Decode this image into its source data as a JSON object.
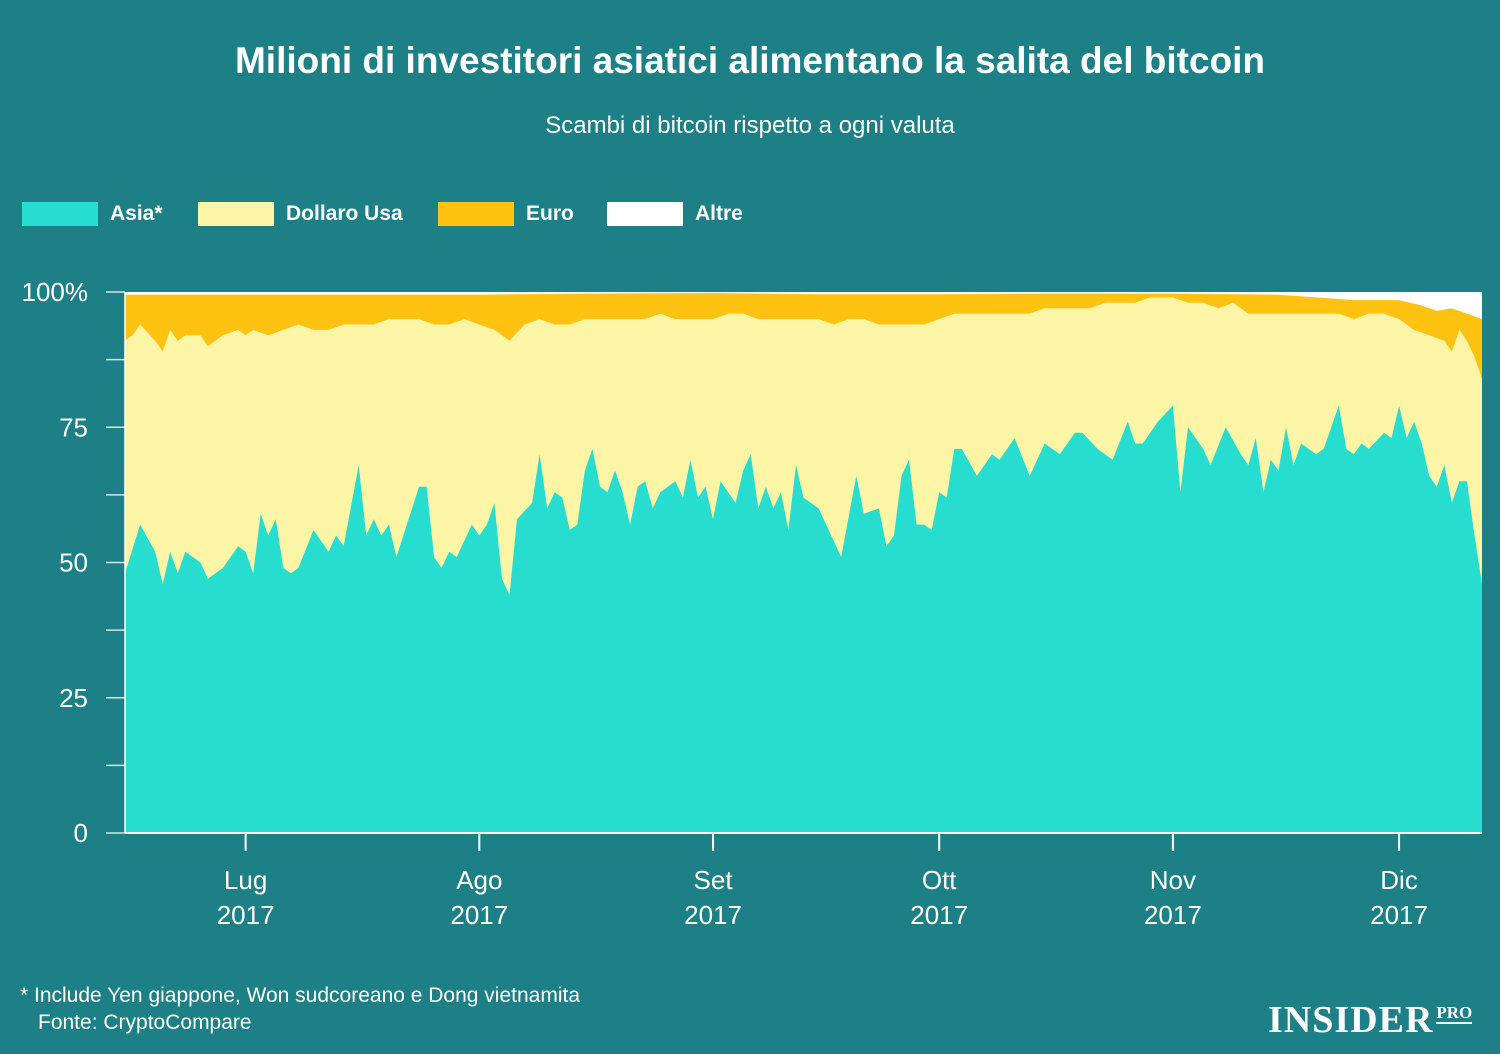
{
  "title": "Milioni di investitori asiatici alimentano la salita del bitcoin",
  "subtitle": "Scambi di bitcoin rispetto a ogni valuta",
  "legend": [
    {
      "label": "Asia*",
      "color": "#26ddd0"
    },
    {
      "label": "Dollaro Usa",
      "color": "#fdf5a6"
    },
    {
      "label": "Euro",
      "color": "#fec211"
    },
    {
      "label": "Altre",
      "color": "#ffffff"
    }
  ],
  "footnote": {
    "note": "* Include Yen giappone, Won sudcoreano e Dong vietnamita",
    "source": "Fonte: CryptoCompare"
  },
  "logo": {
    "main": "INSIDER",
    "sub": "PRO"
  },
  "chart_data": {
    "type": "area",
    "stacked": true,
    "y_unit": "%",
    "ylim": [
      0,
      100
    ],
    "y_ticks": [
      0,
      25,
      50,
      75,
      100
    ],
    "y_tick_labels": [
      "0",
      "25",
      "50",
      "75",
      "100%"
    ],
    "x_start": "2017-06-15",
    "x_end": "2017-12-12",
    "x_ticks": [
      {
        "date": "2017-07-01",
        "month": "Lug",
        "year": "2017"
      },
      {
        "date": "2017-08-01",
        "month": "Ago",
        "year": "2017"
      },
      {
        "date": "2017-09-01",
        "month": "Set",
        "year": "2017"
      },
      {
        "date": "2017-10-01",
        "month": "Ott",
        "year": "2017"
      },
      {
        "date": "2017-11-01",
        "month": "Nov",
        "year": "2017"
      },
      {
        "date": "2017-12-01",
        "month": "Dic",
        "year": "2017"
      }
    ],
    "series": [
      {
        "name": "Asia*",
        "color": "#26ddd0",
        "points": [
          [
            "2017-06-15",
            48
          ],
          [
            "2017-06-17",
            57
          ],
          [
            "2017-06-19",
            52
          ],
          [
            "2017-06-20",
            46
          ],
          [
            "2017-06-21",
            52
          ],
          [
            "2017-06-22",
            48
          ],
          [
            "2017-06-23",
            52
          ],
          [
            "2017-06-25",
            50
          ],
          [
            "2017-06-26",
            47
          ],
          [
            "2017-06-28",
            49
          ],
          [
            "2017-06-30",
            53
          ],
          [
            "2017-07-01",
            52
          ],
          [
            "2017-07-02",
            48
          ],
          [
            "2017-07-03",
            59
          ],
          [
            "2017-07-04",
            55
          ],
          [
            "2017-07-05",
            58
          ],
          [
            "2017-07-06",
            49
          ],
          [
            "2017-07-07",
            48
          ],
          [
            "2017-07-08",
            49
          ],
          [
            "2017-07-10",
            56
          ],
          [
            "2017-07-12",
            52
          ],
          [
            "2017-07-13",
            55
          ],
          [
            "2017-07-14",
            53
          ],
          [
            "2017-07-16",
            68
          ],
          [
            "2017-07-17",
            55
          ],
          [
            "2017-07-18",
            58
          ],
          [
            "2017-07-19",
            55
          ],
          [
            "2017-07-20",
            57
          ],
          [
            "2017-07-21",
            51
          ],
          [
            "2017-07-24",
            64
          ],
          [
            "2017-07-25",
            64
          ],
          [
            "2017-07-26",
            51
          ],
          [
            "2017-07-27",
            49
          ],
          [
            "2017-07-28",
            52
          ],
          [
            "2017-07-29",
            51
          ],
          [
            "2017-07-31",
            57
          ],
          [
            "2017-08-01",
            55
          ],
          [
            "2017-08-02",
            57
          ],
          [
            "2017-08-03",
            61
          ],
          [
            "2017-08-04",
            47
          ],
          [
            "2017-08-05",
            44
          ],
          [
            "2017-08-06",
            58
          ],
          [
            "2017-08-08",
            61
          ],
          [
            "2017-08-09",
            70
          ],
          [
            "2017-08-10",
            60
          ],
          [
            "2017-08-11",
            63
          ],
          [
            "2017-08-12",
            62
          ],
          [
            "2017-08-13",
            56
          ],
          [
            "2017-08-14",
            57
          ],
          [
            "2017-08-15",
            67
          ],
          [
            "2017-08-16",
            71
          ],
          [
            "2017-08-17",
            64
          ],
          [
            "2017-08-18",
            63
          ],
          [
            "2017-08-19",
            67
          ],
          [
            "2017-08-20",
            63
          ],
          [
            "2017-08-21",
            57
          ],
          [
            "2017-08-22",
            64
          ],
          [
            "2017-08-23",
            65
          ],
          [
            "2017-08-24",
            60
          ],
          [
            "2017-08-25",
            63
          ],
          [
            "2017-08-26",
            64
          ],
          [
            "2017-08-27",
            65
          ],
          [
            "2017-08-28",
            62
          ],
          [
            "2017-08-29",
            69
          ],
          [
            "2017-08-30",
            62
          ],
          [
            "2017-08-31",
            64
          ],
          [
            "2017-09-01",
            58
          ],
          [
            "2017-09-02",
            65
          ],
          [
            "2017-09-03",
            63
          ],
          [
            "2017-09-04",
            61
          ],
          [
            "2017-09-05",
            67
          ],
          [
            "2017-09-06",
            70
          ],
          [
            "2017-09-07",
            60
          ],
          [
            "2017-09-08",
            64
          ],
          [
            "2017-09-09",
            60
          ],
          [
            "2017-09-10",
            63
          ],
          [
            "2017-09-11",
            56
          ],
          [
            "2017-09-12",
            68
          ],
          [
            "2017-09-13",
            62
          ],
          [
            "2017-09-14",
            61
          ],
          [
            "2017-09-15",
            60
          ],
          [
            "2017-09-18",
            51
          ],
          [
            "2017-09-20",
            66
          ],
          [
            "2017-09-21",
            59
          ],
          [
            "2017-09-23",
            60
          ],
          [
            "2017-09-24",
            53
          ],
          [
            "2017-09-25",
            55
          ],
          [
            "2017-09-26",
            66
          ],
          [
            "2017-09-27",
            69
          ],
          [
            "2017-09-28",
            57
          ],
          [
            "2017-09-29",
            57
          ],
          [
            "2017-09-30",
            56
          ],
          [
            "2017-10-01",
            63
          ],
          [
            "2017-10-02",
            62
          ],
          [
            "2017-10-03",
            71
          ],
          [
            "2017-10-04",
            71
          ],
          [
            "2017-10-06",
            66
          ],
          [
            "2017-10-08",
            70
          ],
          [
            "2017-10-09",
            69
          ],
          [
            "2017-10-11",
            73
          ],
          [
            "2017-10-13",
            66
          ],
          [
            "2017-10-15",
            72
          ],
          [
            "2017-10-17",
            70
          ],
          [
            "2017-10-19",
            74
          ],
          [
            "2017-10-20",
            74
          ],
          [
            "2017-10-22",
            71
          ],
          [
            "2017-10-24",
            69
          ],
          [
            "2017-10-26",
            76
          ],
          [
            "2017-10-27",
            72
          ],
          [
            "2017-10-28",
            72
          ],
          [
            "2017-10-30",
            76
          ],
          [
            "2017-11-01",
            79
          ],
          [
            "2017-11-02",
            63
          ],
          [
            "2017-11-03",
            75
          ],
          [
            "2017-11-05",
            71
          ],
          [
            "2017-11-06",
            68
          ],
          [
            "2017-11-08",
            75
          ],
          [
            "2017-11-10",
            70
          ],
          [
            "2017-11-11",
            68
          ],
          [
            "2017-11-12",
            73
          ],
          [
            "2017-11-13",
            63
          ],
          [
            "2017-11-14",
            69
          ],
          [
            "2017-11-15",
            67
          ],
          [
            "2017-11-16",
            75
          ],
          [
            "2017-11-17",
            68
          ],
          [
            "2017-11-18",
            72
          ],
          [
            "2017-11-20",
            70
          ],
          [
            "2017-11-21",
            71
          ],
          [
            "2017-11-23",
            79
          ],
          [
            "2017-11-24",
            71
          ],
          [
            "2017-11-25",
            70
          ],
          [
            "2017-11-26",
            72
          ],
          [
            "2017-11-27",
            71
          ],
          [
            "2017-11-29",
            74
          ],
          [
            "2017-11-30",
            73
          ],
          [
            "2017-12-01",
            79
          ],
          [
            "2017-12-02",
            73
          ],
          [
            "2017-12-03",
            76
          ],
          [
            "2017-12-04",
            72
          ],
          [
            "2017-12-05",
            66
          ],
          [
            "2017-12-06",
            64
          ],
          [
            "2017-12-07",
            68
          ],
          [
            "2017-12-08",
            61
          ],
          [
            "2017-12-09",
            65
          ],
          [
            "2017-12-10",
            65
          ],
          [
            "2017-12-11",
            55
          ],
          [
            "2017-12-12",
            46
          ],
          [
            "2017-12-13",
            53
          ],
          [
            "2017-12-14",
            55
          ],
          [
            "2017-12-15",
            50
          ]
        ]
      },
      {
        "name": "Dollaro Usa",
        "color": "#fdf5a6",
        "points": [
          [
            "2017-06-15",
            91
          ],
          [
            "2017-06-16",
            92
          ],
          [
            "2017-06-17",
            94
          ],
          [
            "2017-06-19",
            91
          ],
          [
            "2017-06-20",
            89
          ],
          [
            "2017-06-21",
            93
          ],
          [
            "2017-06-22",
            91
          ],
          [
            "2017-06-23",
            92
          ],
          [
            "2017-06-25",
            92
          ],
          [
            "2017-06-26",
            90
          ],
          [
            "2017-06-28",
            92
          ],
          [
            "2017-06-30",
            93
          ],
          [
            "2017-07-01",
            92
          ],
          [
            "2017-07-02",
            93
          ],
          [
            "2017-07-04",
            92
          ],
          [
            "2017-07-06",
            93
          ],
          [
            "2017-07-08",
            94
          ],
          [
            "2017-07-10",
            93
          ],
          [
            "2017-07-12",
            93
          ],
          [
            "2017-07-14",
            94
          ],
          [
            "2017-07-16",
            94
          ],
          [
            "2017-07-18",
            94
          ],
          [
            "2017-07-20",
            95
          ],
          [
            "2017-07-22",
            95
          ],
          [
            "2017-07-24",
            95
          ],
          [
            "2017-07-26",
            94
          ],
          [
            "2017-07-28",
            94
          ],
          [
            "2017-07-30",
            95
          ],
          [
            "2017-08-01",
            94
          ],
          [
            "2017-08-03",
            93
          ],
          [
            "2017-08-05",
            91
          ],
          [
            "2017-08-07",
            94
          ],
          [
            "2017-08-09",
            95
          ],
          [
            "2017-08-11",
            94
          ],
          [
            "2017-08-13",
            94
          ],
          [
            "2017-08-15",
            95
          ],
          [
            "2017-08-17",
            95
          ],
          [
            "2017-08-19",
            95
          ],
          [
            "2017-08-21",
            95
          ],
          [
            "2017-08-23",
            95
          ],
          [
            "2017-08-25",
            96
          ],
          [
            "2017-08-27",
            95
          ],
          [
            "2017-08-29",
            95
          ],
          [
            "2017-09-01",
            95
          ],
          [
            "2017-09-03",
            96
          ],
          [
            "2017-09-05",
            96
          ],
          [
            "2017-09-07",
            95
          ],
          [
            "2017-09-09",
            95
          ],
          [
            "2017-09-11",
            95
          ],
          [
            "2017-09-13",
            95
          ],
          [
            "2017-09-15",
            95
          ],
          [
            "2017-09-17",
            94
          ],
          [
            "2017-09-19",
            95
          ],
          [
            "2017-09-21",
            95
          ],
          [
            "2017-09-23",
            94
          ],
          [
            "2017-09-25",
            94
          ],
          [
            "2017-09-27",
            94
          ],
          [
            "2017-09-29",
            94
          ],
          [
            "2017-10-01",
            95
          ],
          [
            "2017-10-03",
            96
          ],
          [
            "2017-10-05",
            96
          ],
          [
            "2017-10-07",
            96
          ],
          [
            "2017-10-09",
            96
          ],
          [
            "2017-10-11",
            96
          ],
          [
            "2017-10-13",
            96
          ],
          [
            "2017-10-15",
            97
          ],
          [
            "2017-10-17",
            97
          ],
          [
            "2017-10-19",
            97
          ],
          [
            "2017-10-21",
            97
          ],
          [
            "2017-10-23",
            98
          ],
          [
            "2017-10-25",
            98
          ],
          [
            "2017-10-27",
            98
          ],
          [
            "2017-10-29",
            99
          ],
          [
            "2017-11-01",
            99
          ],
          [
            "2017-11-03",
            98
          ],
          [
            "2017-11-05",
            98
          ],
          [
            "2017-11-07",
            97
          ],
          [
            "2017-11-09",
            98
          ],
          [
            "2017-11-11",
            96
          ],
          [
            "2017-11-13",
            96
          ],
          [
            "2017-11-15",
            96
          ],
          [
            "2017-11-17",
            96
          ],
          [
            "2017-11-19",
            96
          ],
          [
            "2017-11-21",
            96
          ],
          [
            "2017-11-23",
            96
          ],
          [
            "2017-11-25",
            95
          ],
          [
            "2017-11-27",
            96
          ],
          [
            "2017-11-29",
            96
          ],
          [
            "2017-12-01",
            95
          ],
          [
            "2017-12-03",
            93
          ],
          [
            "2017-12-05",
            92
          ],
          [
            "2017-12-07",
            91
          ],
          [
            "2017-12-08",
            89
          ],
          [
            "2017-12-09",
            93
          ],
          [
            "2017-12-10",
            91
          ],
          [
            "2017-12-11",
            88
          ],
          [
            "2017-12-12",
            84
          ],
          [
            "2017-12-13",
            88
          ],
          [
            "2017-12-14",
            89
          ],
          [
            "2017-12-15",
            89
          ]
        ]
      },
      {
        "name": "Euro",
        "color": "#fec211",
        "points": [
          [
            "2017-06-15",
            99.5
          ],
          [
            "2017-07-01",
            99.5
          ],
          [
            "2017-07-15",
            99.5
          ],
          [
            "2017-08-01",
            99.5
          ],
          [
            "2017-08-15",
            99.7
          ],
          [
            "2017-09-01",
            99.8
          ],
          [
            "2017-09-15",
            99.6
          ],
          [
            "2017-10-01",
            99.6
          ],
          [
            "2017-10-15",
            99.7
          ],
          [
            "2017-11-01",
            99.7
          ],
          [
            "2017-11-15",
            99.5
          ],
          [
            "2017-11-20",
            99
          ],
          [
            "2017-11-25",
            98.5
          ],
          [
            "2017-12-01",
            98.5
          ],
          [
            "2017-12-04",
            97.5
          ],
          [
            "2017-12-06",
            96.5
          ],
          [
            "2017-12-08",
            97
          ],
          [
            "2017-12-10",
            96
          ],
          [
            "2017-12-12",
            95
          ],
          [
            "2017-12-15",
            94.5
          ]
        ]
      },
      {
        "name": "Altre",
        "color": "#ffffff",
        "points": [
          [
            "2017-06-15",
            100
          ],
          [
            "2017-12-15",
            100
          ]
        ]
      }
    ]
  }
}
